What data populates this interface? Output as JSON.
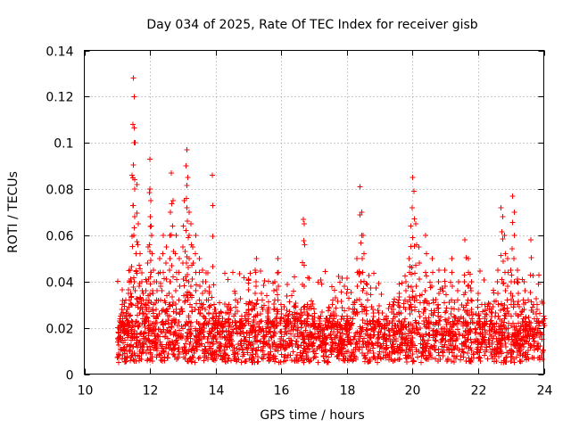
{
  "chart_data": {
    "type": "scatter",
    "title": "Day 034 of 2025, Rate Of TEC Index for receiver gisb",
    "xlabel": "GPS time / hours",
    "ylabel": "ROTI / TECUs",
    "xlim": [
      10,
      24
    ],
    "ylim": [
      0,
      0.14
    ],
    "xticks": [
      10,
      12,
      14,
      16,
      18,
      20,
      22,
      24
    ],
    "xtick_labels": [
      "10",
      "12",
      "14",
      "16",
      "18",
      "20",
      "22",
      "24"
    ],
    "yticks": [
      0,
      0.02,
      0.04,
      0.06,
      0.08,
      0.1,
      0.12,
      0.14
    ],
    "ytick_labels": [
      "0",
      "0.02",
      "0.04",
      "0.06",
      "0.08",
      "0.1",
      "0.12",
      "0.14"
    ],
    "grid": true,
    "marker": "+",
    "color": "#ff0000",
    "series": [
      {
        "name": "ROTI",
        "x": [
          11.05,
          11.1,
          11.15,
          11.2,
          11.25,
          11.3,
          11.35,
          11.4,
          11.45,
          11.48,
          11.5,
          11.52,
          11.55,
          11.6,
          11.65,
          11.7,
          11.75,
          11.8,
          11.85,
          11.9,
          11.95,
          12.0,
          12.0,
          12.02,
          12.05,
          12.1,
          12.2,
          12.3,
          12.4,
          12.5,
          12.6,
          12.62,
          12.65,
          12.7,
          12.8,
          12.9,
          13.0,
          13.05,
          13.1,
          13.12,
          13.15,
          13.2,
          13.25,
          13.3,
          13.4,
          13.5,
          13.6,
          13.7,
          13.8,
          13.9,
          13.95,
          14.0,
          14.1,
          14.2,
          14.4,
          14.6,
          14.8,
          15.0,
          15.2,
          15.25,
          15.4,
          15.6,
          15.8,
          15.9,
          16.0,
          16.2,
          16.4,
          16.6,
          16.68,
          16.7,
          16.8,
          17.0,
          17.2,
          17.4,
          17.6,
          17.8,
          18.0,
          18.2,
          18.3,
          18.4,
          18.45,
          18.5,
          18.6,
          18.8,
          19.0,
          19.2,
          19.4,
          19.6,
          19.8,
          19.9,
          19.95,
          20.0,
          20.05,
          20.1,
          20.2,
          20.4,
          20.6,
          20.8,
          21.0,
          21.2,
          21.4,
          21.6,
          21.7,
          21.8,
          22.0,
          22.2,
          22.4,
          22.6,
          22.7,
          22.75,
          22.8,
          22.9,
          23.0,
          23.05,
          23.1,
          23.2,
          23.4,
          23.6,
          23.8,
          24.0
        ],
        "y": [
          0.02,
          0.025,
          0.03,
          0.022,
          0.018,
          0.028,
          0.035,
          0.045,
          0.086,
          0.108,
          0.128,
          0.12,
          0.1,
          0.082,
          0.065,
          0.052,
          0.04,
          0.035,
          0.03,
          0.04,
          0.055,
          0.08,
          0.093,
          0.075,
          0.06,
          0.045,
          0.04,
          0.05,
          0.06,
          0.055,
          0.045,
          0.07,
          0.087,
          0.075,
          0.06,
          0.05,
          0.055,
          0.075,
          0.09,
          0.097,
          0.085,
          0.07,
          0.065,
          0.055,
          0.06,
          0.05,
          0.045,
          0.04,
          0.035,
          0.086,
          0.03,
          0.028,
          0.025,
          0.022,
          0.03,
          0.035,
          0.025,
          0.03,
          0.045,
          0.05,
          0.035,
          0.028,
          0.04,
          0.05,
          0.03,
          0.025,
          0.025,
          0.028,
          0.067,
          0.065,
          0.03,
          0.022,
          0.025,
          0.02,
          0.025,
          0.02,
          0.025,
          0.03,
          0.05,
          0.081,
          0.07,
          0.06,
          0.035,
          0.028,
          0.022,
          0.025,
          0.03,
          0.035,
          0.04,
          0.05,
          0.064,
          0.085,
          0.079,
          0.065,
          0.055,
          0.06,
          0.05,
          0.045,
          0.038,
          0.05,
          0.04,
          0.058,
          0.05,
          0.04,
          0.035,
          0.03,
          0.028,
          0.045,
          0.072,
          0.068,
          0.06,
          0.05,
          0.045,
          0.077,
          0.07,
          0.045,
          0.04,
          0.058,
          0.03,
          0.025
        ]
      }
    ],
    "notes": "Dense band of additional points between about 0.005 and 0.03 TECU spanning 11.0–24.0 h"
  }
}
